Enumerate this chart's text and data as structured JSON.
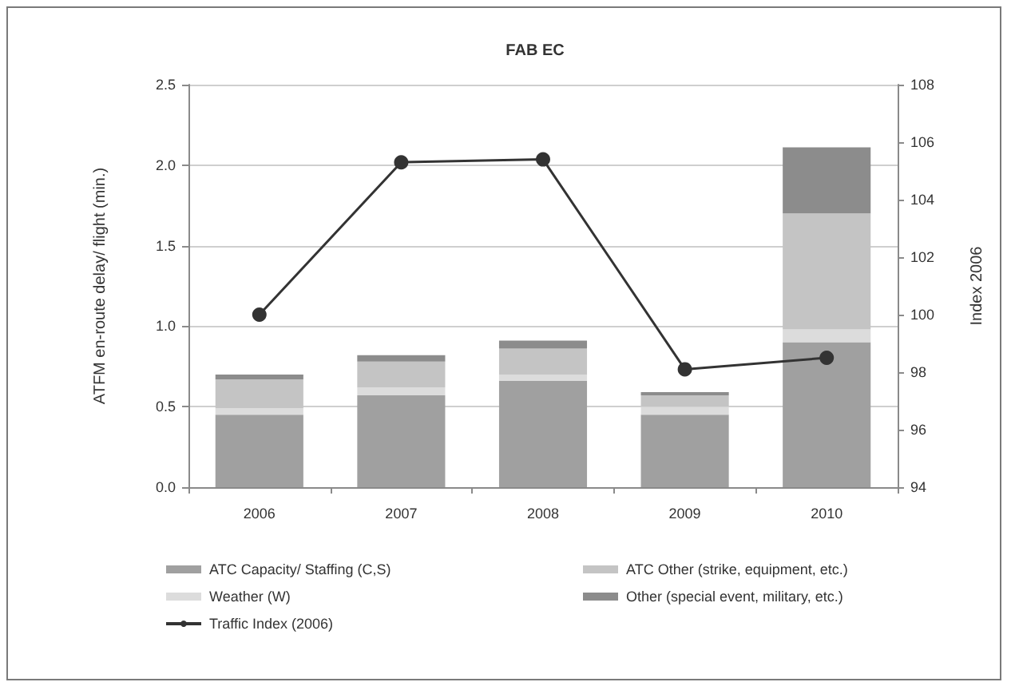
{
  "chart_data": {
    "type": "bar",
    "title": "FAB EC",
    "ylabel": "ATFM en-route delay/ flight (min.)",
    "y2label": "Index 2006",
    "categories": [
      "2006",
      "2007",
      "2008",
      "2009",
      "2010"
    ],
    "stacked": true,
    "series": [
      {
        "name": "ATC Capacity/ Staffing (C,S)",
        "color": "#a0a0a0",
        "values": [
          0.45,
          0.57,
          0.66,
          0.45,
          0.9
        ]
      },
      {
        "name": "Weather (W)",
        "color": "#dcdcdc",
        "values": [
          0.04,
          0.05,
          0.04,
          0.05,
          0.08
        ]
      },
      {
        "name": "ATC Other (strike, equipment, etc.)",
        "color": "#c4c4c4",
        "values": [
          0.18,
          0.16,
          0.16,
          0.07,
          0.72
        ]
      },
      {
        "name": "Other (special event, military, etc.)",
        "color": "#8c8c8c",
        "values": [
          0.03,
          0.04,
          0.05,
          0.02,
          0.41
        ]
      },
      {
        "name": "Traffic Index (2006)",
        "type": "line",
        "axis": "y2",
        "color": "#333333",
        "values": [
          100,
          105.3,
          105.4,
          98.1,
          98.5
        ]
      }
    ],
    "ylim": [
      0,
      2.5
    ],
    "yticks": [
      {
        "value": 0,
        "label": "0.0"
      },
      0.5,
      {
        "value": 1,
        "label": "1.0"
      },
      1.5,
      {
        "value": 2,
        "label": "2.0"
      },
      2.5
    ],
    "y2lim": [
      94,
      108
    ],
    "y2ticks": [
      94,
      96,
      98,
      100,
      102,
      104,
      106,
      108
    ],
    "grid": "y",
    "legend": "bottom",
    "marker": "circle"
  }
}
